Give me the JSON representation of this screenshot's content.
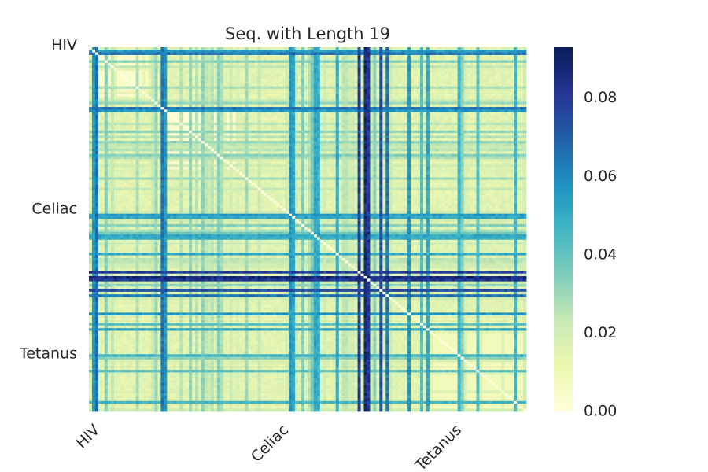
{
  "chart_data": {
    "type": "heatmap",
    "title": "Seq. with Length 19",
    "xlabel": "",
    "ylabel": "",
    "row_tick_labels": [
      "HIV",
      "Celiac",
      "Tetanus"
    ],
    "col_tick_labels": [
      "HIV",
      "Celiac",
      "Tetanus"
    ],
    "groups": [
      {
        "name": "HIV",
        "start_fraction": 0.0,
        "end_fraction": 0.36
      },
      {
        "name": "Celiac",
        "start_fraction": 0.36,
        "end_fraction": 0.78
      },
      {
        "name": "Tetanus",
        "start_fraction": 0.78,
        "end_fraction": 1.0
      }
    ],
    "value_range": [
      0.0,
      0.093
    ],
    "colorbar": {
      "ticks": [
        0.0,
        0.02,
        0.04,
        0.06,
        0.08
      ],
      "tick_labels": [
        "0.00",
        "0.02",
        "0.04",
        "0.06",
        "0.08"
      ],
      "colormap": "YlGnBu"
    },
    "typical_values": {
      "background": 0.015,
      "hiv_block": 0.004,
      "celiac_block": 0.003,
      "diagonal": 0.0,
      "highlight_lines_max": 0.093
    },
    "grid": false,
    "legend": "colorbar-right"
  }
}
